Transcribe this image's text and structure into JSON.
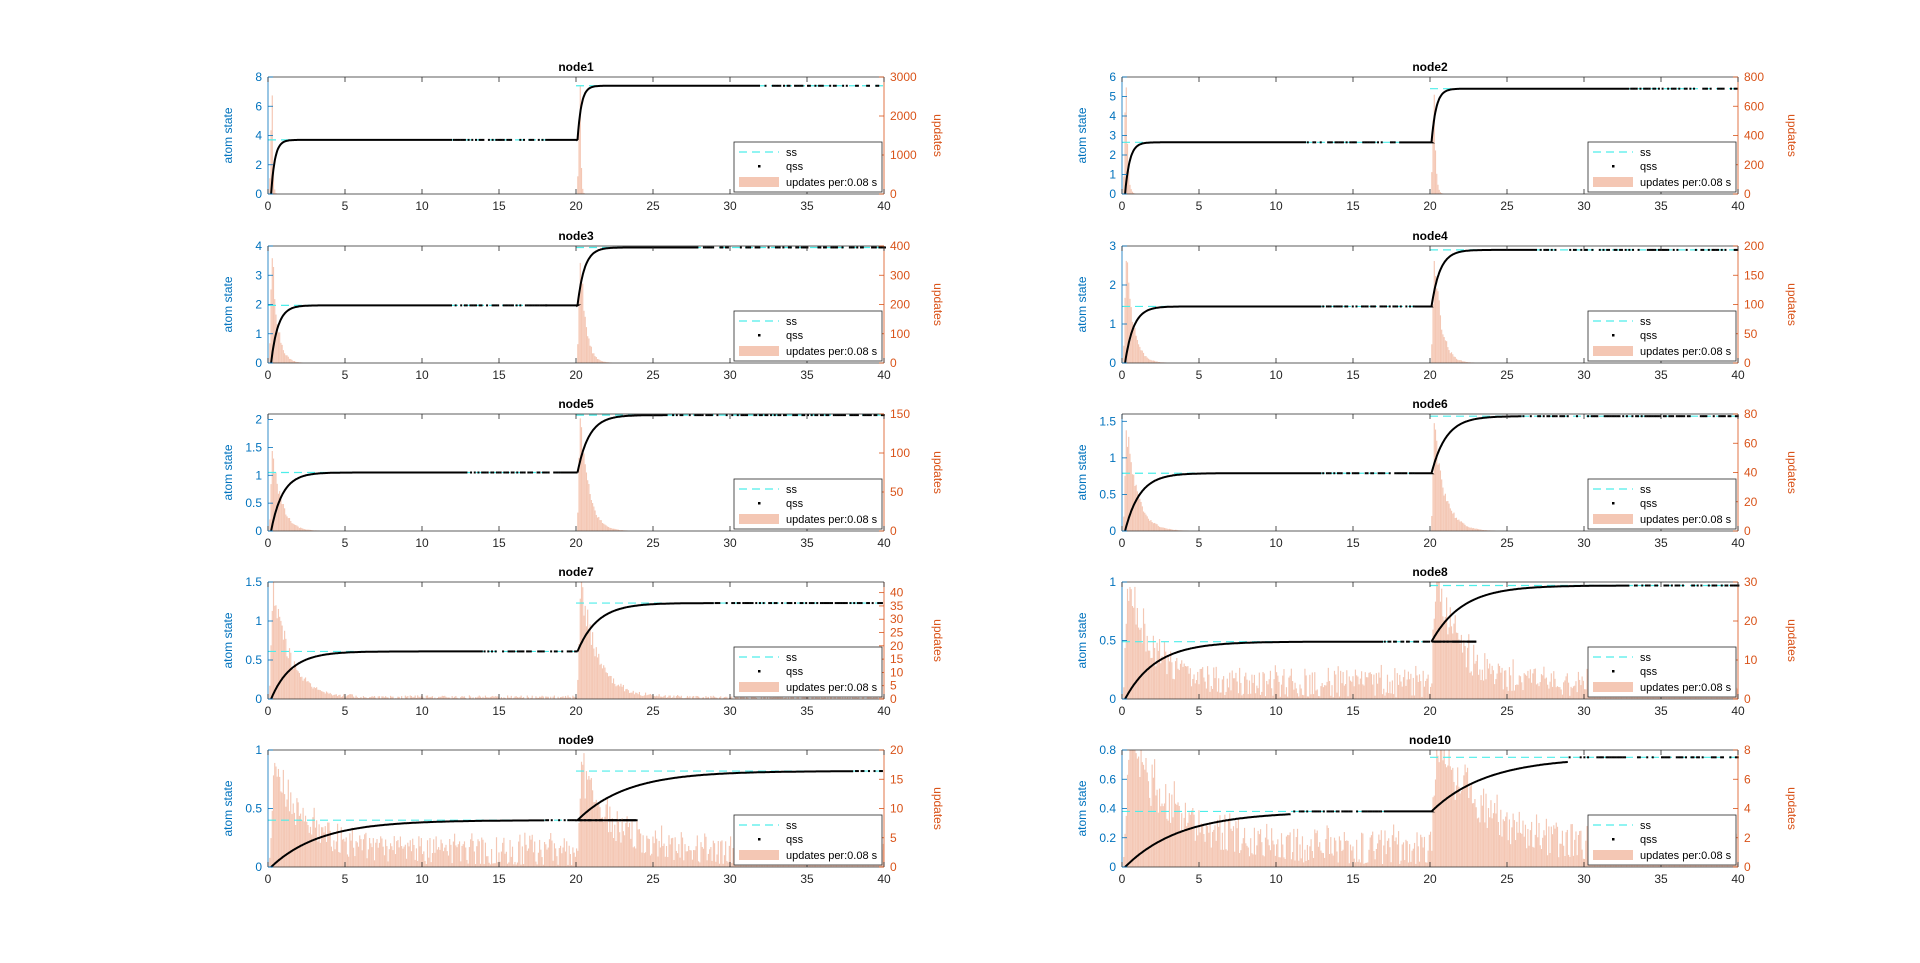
{
  "figure": {
    "x_axis": {
      "range": [
        0,
        40
      ],
      "ticks": [
        0,
        5,
        10,
        15,
        20,
        25,
        30,
        35,
        40
      ]
    },
    "left_axis_label": "atom state",
    "right_axis_label": "updates",
    "legend": [
      "ss",
      "qss",
      "updates per:0.08 s"
    ],
    "colors": {
      "left_axis": "#0072BD",
      "right_axis": "#D95319",
      "ss": "#4DEEEA",
      "qss": "#000000",
      "hist": "#F4C7B4"
    }
  },
  "chart_data": [
    {
      "title": "node1",
      "type": "line+histogram",
      "xlim": [
        0,
        40
      ],
      "ylim": [
        0,
        8
      ],
      "yticks": [
        0,
        2,
        4,
        6,
        8
      ],
      "y2lim": [
        0,
        3000
      ],
      "y2ticks": [
        0,
        1000,
        2000,
        3000
      ],
      "ss_levels": [
        3.7,
        7.4
      ],
      "tau": 0.25,
      "ss_dots_after": [
        12,
        32
      ],
      "hist": {
        "bin_width": 0.08,
        "peak1": 2200,
        "peak2": 2500,
        "decay": 0.05,
        "noise_floor": 0
      }
    },
    {
      "title": "node2",
      "type": "line+histogram",
      "xlim": [
        0,
        40
      ],
      "ylim": [
        0,
        6
      ],
      "yticks": [
        0,
        1,
        2,
        3,
        4,
        5,
        6
      ],
      "y2lim": [
        0,
        800
      ],
      "y2ticks": [
        0,
        200,
        400,
        600,
        800
      ],
      "ss_levels": [
        2.65,
        5.4
      ],
      "tau": 0.3,
      "ss_dots_after": [
        12,
        33
      ],
      "hist": {
        "bin_width": 0.08,
        "peak1": 700,
        "peak2": 700,
        "decay": 0.1,
        "noise_floor": 0
      }
    },
    {
      "title": "node3",
      "type": "line+histogram",
      "xlim": [
        0,
        40
      ],
      "ylim": [
        0,
        4
      ],
      "yticks": [
        0,
        1,
        2,
        3,
        4
      ],
      "y2lim": [
        0,
        400
      ],
      "y2ticks": [
        0,
        100,
        200,
        300,
        400
      ],
      "ss_levels": [
        1.97,
        3.95
      ],
      "tau": 0.45,
      "ss_dots_after": [
        12,
        28
      ],
      "hist": {
        "bin_width": 0.08,
        "peak1": 370,
        "peak2": 370,
        "decay": 0.35,
        "noise_floor": 0
      }
    },
    {
      "title": "node4",
      "type": "line+histogram",
      "xlim": [
        0,
        40
      ],
      "ylim": [
        0,
        3
      ],
      "yticks": [
        0,
        1,
        2,
        3
      ],
      "y2lim": [
        0,
        200
      ],
      "y2ticks": [
        0,
        50,
        100,
        150,
        200
      ],
      "ss_levels": [
        1.45,
        2.9
      ],
      "tau": 0.55,
      "ss_dots_after": [
        13,
        27
      ],
      "hist": {
        "bin_width": 0.08,
        "peak1": 190,
        "peak2": 190,
        "decay": 0.45,
        "noise_floor": 0
      }
    },
    {
      "title": "node5",
      "type": "line+histogram",
      "xlim": [
        0,
        40
      ],
      "ylim": [
        0,
        2.1
      ],
      "yticks": [
        0,
        0.5,
        1,
        1.5,
        2
      ],
      "y2lim": [
        0,
        150
      ],
      "y2ticks": [
        0,
        50,
        100,
        150
      ],
      "ss_levels": [
        1.05,
        2.08
      ],
      "tau": 0.75,
      "ss_dots_after": [
        13,
        26
      ],
      "hist": {
        "bin_width": 0.08,
        "peak1": 110,
        "peak2": 145,
        "decay": 0.55,
        "noise_floor": 0
      }
    },
    {
      "title": "node6",
      "type": "line+histogram",
      "xlim": [
        0,
        40
      ],
      "ylim": [
        0,
        1.6
      ],
      "yticks": [
        0,
        0.5,
        1,
        1.5
      ],
      "y2lim": [
        0,
        80
      ],
      "y2ticks": [
        0,
        20,
        40,
        60,
        80
      ],
      "ss_levels": [
        0.79,
        1.57
      ],
      "tau": 0.95,
      "ss_dots_after": [
        13,
        26
      ],
      "hist": {
        "bin_width": 0.08,
        "peak1": 70,
        "peak2": 70,
        "decay": 0.7,
        "noise_floor": 0
      }
    },
    {
      "title": "node7",
      "type": "line+histogram",
      "xlim": [
        0,
        40
      ],
      "ylim": [
        0,
        1.5
      ],
      "yticks": [
        0,
        0.5,
        1,
        1.5
      ],
      "y2lim": [
        0,
        44
      ],
      "y2ticks": [
        0,
        5,
        10,
        15,
        20,
        25,
        30,
        35,
        40
      ],
      "ss_levels": [
        0.61,
        1.23
      ],
      "tau": 1.3,
      "ss_dots_after": [
        14,
        29
      ],
      "hist": {
        "bin_width": 0.08,
        "peak1": 44,
        "peak2": 44,
        "decay": 1.1,
        "noise_floor": 1
      }
    },
    {
      "title": "node8",
      "type": "line+histogram",
      "xlim": [
        0,
        40
      ],
      "ylim": [
        0,
        1
      ],
      "yticks": [
        0,
        0.5,
        1
      ],
      "y2lim": [
        0,
        30
      ],
      "y2ticks": [
        0,
        10,
        20,
        30
      ],
      "ss_levels": [
        0.49,
        0.97
      ],
      "tau": 2.0,
      "ss_dots_after": [
        17,
        33
      ],
      "hist": {
        "bin_width": 0.08,
        "peak1": 29,
        "peak2": 29,
        "decay": 1.6,
        "noise_floor": 6
      }
    },
    {
      "title": "node9",
      "type": "line+histogram",
      "xlim": [
        0,
        40
      ],
      "ylim": [
        0,
        1
      ],
      "yticks": [
        0,
        0.5,
        1
      ],
      "y2lim": [
        0,
        20
      ],
      "y2ticks": [
        0,
        5,
        10,
        15,
        20
      ],
      "ss_levels": [
        0.4,
        0.82
      ],
      "tau": 3.2,
      "ss_dots_after": [
        18,
        38
      ],
      "hist": {
        "bin_width": 0.08,
        "peak1": 16,
        "peak2": 15,
        "decay": 2.0,
        "noise_floor": 4
      }
    },
    {
      "title": "node10",
      "type": "line+histogram",
      "xlim": [
        0,
        40
      ],
      "ylim": [
        0,
        0.8
      ],
      "yticks": [
        0,
        0.2,
        0.4,
        0.6,
        0.8
      ],
      "y2lim": [
        0,
        8
      ],
      "y2ticks": [
        0,
        2,
        4,
        6,
        8
      ],
      "ss_levels": [
        0.38,
        0.75
      ],
      "tau": 3.6,
      "ss_dots_after": [
        11,
        29
      ],
      "hist": {
        "bin_width": 0.08,
        "peak1": 8,
        "peak2": 8,
        "decay": 3.0,
        "noise_floor": 2
      }
    }
  ]
}
